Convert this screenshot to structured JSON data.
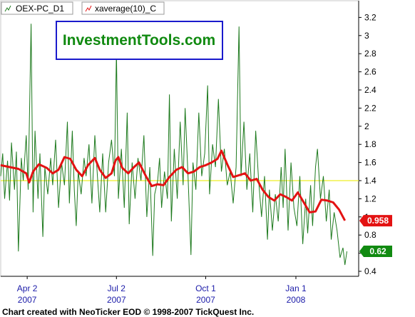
{
  "watermark": "InvestmentTools.com",
  "footer": "Chart created with NeoTicker EOD © 1998-2007 TickQuest Inc.",
  "colors": {
    "series_pc": "#1e7a1e",
    "series_avg": "#e31212",
    "reference": "#f2f24a",
    "badge_pc": "#118a11",
    "badge_avg": "#e31212",
    "x_labels": "#1a1aa8"
  },
  "chart_data": {
    "type": "line",
    "legend": [
      {
        "name": "OEX-PC_D1",
        "icon": "line-chart-icon"
      },
      {
        "name": "xaverage(10)_C",
        "icon": "line-chart-icon"
      }
    ],
    "ylim": [
      0.4,
      3.35
    ],
    "y_ticks": [
      "0.4",
      "0.6",
      "0.8",
      "1",
      "1.2",
      "1.4",
      "1.6",
      "1.8",
      "2",
      "2.2",
      "2.4",
      "2.6",
      "2.8",
      "3",
      "3.2"
    ],
    "x_range": [
      "2007-03-06",
      "2008-03-05"
    ],
    "x_ticks": [
      {
        "date": "2007-04-02",
        "label": "Apr 2",
        "year": "2007"
      },
      {
        "date": "2007-07-02",
        "label": "Jul 2",
        "year": "2007"
      },
      {
        "date": "2007-10-01",
        "label": "Oct 1",
        "year": "2007"
      },
      {
        "date": "2008-01-01",
        "label": "Jan 1",
        "year": "2008"
      }
    ],
    "reference_line": 1.4,
    "badges": [
      {
        "series": "xaverage(10)_C",
        "value": "0.958"
      },
      {
        "series": "OEX-PC_D1",
        "value": "0.62"
      }
    ],
    "series": [
      {
        "name": "OEX-PC_D1",
        "points": [
          [
            "2007-03-06",
            1.45
          ],
          [
            "2007-03-08",
            1.7
          ],
          [
            "2007-03-10",
            1.2
          ],
          [
            "2007-03-13",
            1.62
          ],
          [
            "2007-03-15",
            1.18
          ],
          [
            "2007-03-17",
            1.82
          ],
          [
            "2007-03-20",
            1.3
          ],
          [
            "2007-03-22",
            1.72
          ],
          [
            "2007-03-24",
            0.62
          ],
          [
            "2007-03-27",
            1.65
          ],
          [
            "2007-03-29",
            1.4
          ],
          [
            "2007-04-01",
            1.9
          ],
          [
            "2007-04-03",
            1.3
          ],
          [
            "2007-04-06",
            3.13
          ],
          [
            "2007-04-08",
            1.05
          ],
          [
            "2007-04-10",
            1.95
          ],
          [
            "2007-04-13",
            1.2
          ],
          [
            "2007-04-15",
            1.7
          ],
          [
            "2007-04-18",
            0.78
          ],
          [
            "2007-04-20",
            1.55
          ],
          [
            "2007-04-23",
            1.25
          ],
          [
            "2007-04-26",
            1.65
          ],
          [
            "2007-04-28",
            1.35
          ],
          [
            "2007-05-01",
            1.85
          ],
          [
            "2007-05-04",
            1.1
          ],
          [
            "2007-05-07",
            1.6
          ],
          [
            "2007-05-10",
            1.35
          ],
          [
            "2007-05-13",
            2.05
          ],
          [
            "2007-05-15",
            1.15
          ],
          [
            "2007-05-18",
            1.95
          ],
          [
            "2007-05-20",
            1.3
          ],
          [
            "2007-05-22",
            0.9
          ],
          [
            "2007-05-24",
            1.5
          ],
          [
            "2007-05-27",
            1.25
          ],
          [
            "2007-05-30",
            1.65
          ],
          [
            "2007-06-01",
            1.45
          ],
          [
            "2007-06-04",
            1.8
          ],
          [
            "2007-06-07",
            1.15
          ],
          [
            "2007-06-10",
            1.9
          ],
          [
            "2007-06-12",
            1.55
          ],
          [
            "2007-06-15",
            1.05
          ],
          [
            "2007-06-18",
            1.7
          ],
          [
            "2007-06-21",
            1.05
          ],
          [
            "2007-06-24",
            1.6
          ],
          [
            "2007-06-27",
            1.85
          ],
          [
            "2007-06-30",
            1.45
          ],
          [
            "2007-07-02",
            2.83
          ],
          [
            "2007-07-04",
            1.2
          ],
          [
            "2007-07-07",
            1.75
          ],
          [
            "2007-07-10",
            1.1
          ],
          [
            "2007-07-13",
            2.15
          ],
          [
            "2007-07-15",
            0.92
          ],
          [
            "2007-07-18",
            1.6
          ],
          [
            "2007-07-21",
            1.2
          ],
          [
            "2007-07-24",
            1.65
          ],
          [
            "2007-07-27",
            1.4
          ],
          [
            "2007-07-30",
            1.9
          ],
          [
            "2007-08-02",
            1.0
          ],
          [
            "2007-08-05",
            1.55
          ],
          [
            "2007-08-08",
            0.57
          ],
          [
            "2007-08-10",
            1.25
          ],
          [
            "2007-08-13",
            1.4
          ],
          [
            "2007-08-15",
            1.65
          ],
          [
            "2007-08-17",
            1.1
          ],
          [
            "2007-08-20",
            1.5
          ],
          [
            "2007-08-23",
            1.2
          ],
          [
            "2007-08-25",
            2.35
          ],
          [
            "2007-08-27",
            0.95
          ],
          [
            "2007-08-30",
            1.75
          ],
          [
            "2007-09-02",
            1.2
          ],
          [
            "2007-09-05",
            2.05
          ],
          [
            "2007-09-08",
            1.35
          ],
          [
            "2007-09-10",
            2.2
          ],
          [
            "2007-09-13",
            1.45
          ],
          [
            "2007-09-16",
            0.58
          ],
          [
            "2007-09-18",
            1.6
          ],
          [
            "2007-09-21",
            1.3
          ],
          [
            "2007-09-24",
            2.15
          ],
          [
            "2007-09-27",
            1.45
          ],
          [
            "2007-09-30",
            1.7
          ],
          [
            "2007-10-03",
            2.45
          ],
          [
            "2007-10-05",
            1.25
          ],
          [
            "2007-10-08",
            1.8
          ],
          [
            "2007-10-11",
            1.55
          ],
          [
            "2007-10-14",
            2.3
          ],
          [
            "2007-10-17",
            1.5
          ],
          [
            "2007-10-20",
            1.75
          ],
          [
            "2007-10-23",
            1.35
          ],
          [
            "2007-10-26",
            1.5
          ],
          [
            "2007-10-29",
            1.15
          ],
          [
            "2007-11-01",
            1.55
          ],
          [
            "2007-11-04",
            3.1
          ],
          [
            "2007-11-06",
            1.45
          ],
          [
            "2007-11-09",
            2.05
          ],
          [
            "2007-11-12",
            1.3
          ],
          [
            "2007-11-15",
            1.7
          ],
          [
            "2007-11-18",
            1.05
          ],
          [
            "2007-11-21",
            1.95
          ],
          [
            "2007-11-24",
            1.4
          ],
          [
            "2007-11-27",
            1.0
          ],
          [
            "2007-11-30",
            1.45
          ],
          [
            "2007-12-03",
            0.75
          ],
          [
            "2007-12-05",
            1.3
          ],
          [
            "2007-12-08",
            0.85
          ],
          [
            "2007-12-11",
            1.25
          ],
          [
            "2007-12-14",
            0.95
          ],
          [
            "2007-12-17",
            1.55
          ],
          [
            "2007-12-19",
            1.1
          ],
          [
            "2007-12-21",
            1.75
          ],
          [
            "2007-12-24",
            0.85
          ],
          [
            "2007-12-27",
            1.6
          ],
          [
            "2007-12-30",
            1.1
          ],
          [
            "2008-01-02",
            0.9
          ],
          [
            "2008-01-05",
            1.45
          ],
          [
            "2008-01-08",
            0.7
          ],
          [
            "2008-01-11",
            1.2
          ],
          [
            "2008-01-13",
            0.82
          ],
          [
            "2008-01-16",
            1.35
          ],
          [
            "2008-01-18",
            0.9
          ],
          [
            "2008-01-21",
            1.55
          ],
          [
            "2008-01-23",
            1.75
          ],
          [
            "2008-01-26",
            1.2
          ],
          [
            "2008-01-29",
            1.45
          ],
          [
            "2008-02-01",
            0.95
          ],
          [
            "2008-02-04",
            1.3
          ],
          [
            "2008-02-06",
            0.75
          ],
          [
            "2008-02-09",
            1.05
          ],
          [
            "2008-02-12",
            0.85
          ],
          [
            "2008-02-15",
            0.55
          ],
          [
            "2008-02-18",
            0.66
          ],
          [
            "2008-02-20",
            0.47
          ],
          [
            "2008-02-22",
            0.62
          ]
        ]
      },
      {
        "name": "xaverage(10)_C",
        "points": [
          [
            "2007-03-06",
            1.57
          ],
          [
            "2007-03-15",
            1.55
          ],
          [
            "2007-03-24",
            1.53
          ],
          [
            "2007-04-01",
            1.48
          ],
          [
            "2007-04-04",
            1.38
          ],
          [
            "2007-04-08",
            1.5
          ],
          [
            "2007-04-14",
            1.58
          ],
          [
            "2007-04-22",
            1.54
          ],
          [
            "2007-04-28",
            1.48
          ],
          [
            "2007-05-04",
            1.52
          ],
          [
            "2007-05-10",
            1.66
          ],
          [
            "2007-05-16",
            1.64
          ],
          [
            "2007-05-22",
            1.52
          ],
          [
            "2007-05-28",
            1.45
          ],
          [
            "2007-06-03",
            1.57
          ],
          [
            "2007-06-10",
            1.65
          ],
          [
            "2007-06-15",
            1.52
          ],
          [
            "2007-06-21",
            1.43
          ],
          [
            "2007-06-27",
            1.48
          ],
          [
            "2007-07-01",
            1.62
          ],
          [
            "2007-07-04",
            1.66
          ],
          [
            "2007-07-08",
            1.54
          ],
          [
            "2007-07-14",
            1.48
          ],
          [
            "2007-07-20",
            1.55
          ],
          [
            "2007-07-25",
            1.6
          ],
          [
            "2007-08-01",
            1.45
          ],
          [
            "2007-08-07",
            1.34
          ],
          [
            "2007-08-13",
            1.36
          ],
          [
            "2007-08-19",
            1.35
          ],
          [
            "2007-08-25",
            1.44
          ],
          [
            "2007-09-01",
            1.52
          ],
          [
            "2007-09-07",
            1.55
          ],
          [
            "2007-09-13",
            1.48
          ],
          [
            "2007-09-19",
            1.5
          ],
          [
            "2007-09-25",
            1.55
          ],
          [
            "2007-10-01",
            1.57
          ],
          [
            "2007-10-07",
            1.6
          ],
          [
            "2007-10-13",
            1.64
          ],
          [
            "2007-10-17",
            1.73
          ],
          [
            "2007-10-23",
            1.58
          ],
          [
            "2007-10-29",
            1.44
          ],
          [
            "2007-11-04",
            1.46
          ],
          [
            "2007-11-10",
            1.48
          ],
          [
            "2007-11-16",
            1.4
          ],
          [
            "2007-11-22",
            1.42
          ],
          [
            "2007-11-28",
            1.3
          ],
          [
            "2007-12-04",
            1.22
          ],
          [
            "2007-12-10",
            1.18
          ],
          [
            "2007-12-16",
            1.25
          ],
          [
            "2007-12-22",
            1.22
          ],
          [
            "2007-12-28",
            1.18
          ],
          [
            "2008-01-03",
            1.27
          ],
          [
            "2008-01-09",
            1.16
          ],
          [
            "2008-01-15",
            1.05
          ],
          [
            "2008-01-21",
            1.06
          ],
          [
            "2008-01-27",
            1.19
          ],
          [
            "2008-02-02",
            1.18
          ],
          [
            "2008-02-08",
            1.16
          ],
          [
            "2008-02-14",
            1.08
          ],
          [
            "2008-02-20",
            0.96
          ]
        ]
      }
    ]
  }
}
